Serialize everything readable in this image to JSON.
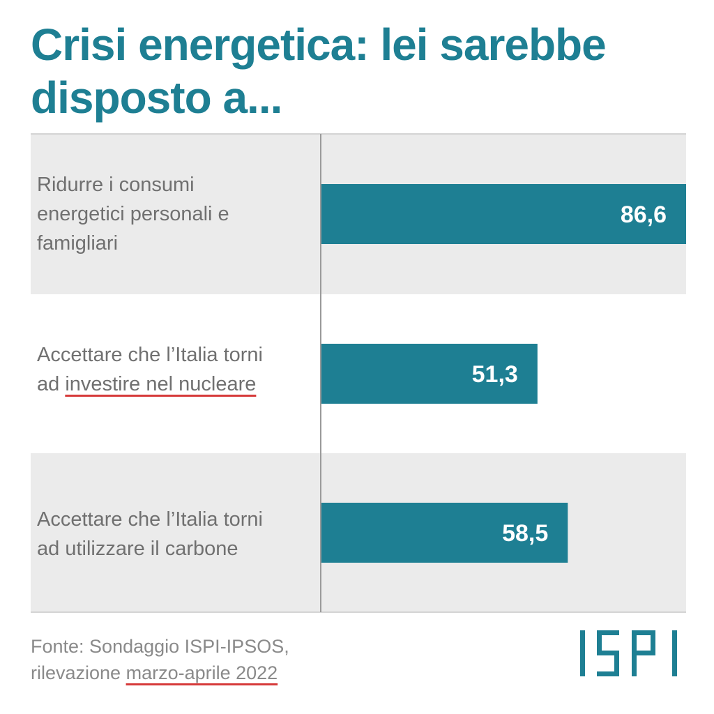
{
  "title": {
    "line1": "Crisi energetica: lei sarebbe",
    "line2": "disposto a..."
  },
  "labels": [
    {
      "lines": [
        "Ridurre i consumi",
        "energetici personali e",
        "famigliari"
      ]
    },
    {
      "line1_a": "Accettare che l’Italia torni",
      "line2_pre": "ad ",
      "line2_underlined": "investire nel nucleare"
    },
    {
      "lines": [
        "Accettare che l’Italia torni",
        "ad utilizzare il carbone"
      ]
    }
  ],
  "chart_data": {
    "type": "bar",
    "orientation": "horizontal",
    "categories": [
      "Ridurre i consumi energetici personali e famigliari",
      "Accettare che l’Italia torni ad investire nel nucleare",
      "Accettare che l’Italia torni ad utilizzare il carbone"
    ],
    "values": [
      86.6,
      51.3,
      58.5
    ],
    "value_labels": [
      "86,6",
      "51,3",
      "58,5"
    ],
    "xlim": [
      0,
      86.6
    ],
    "grid": false,
    "bar_color": "#1e7f93",
    "band_color": "#ebebeb"
  },
  "footer": {
    "source_line1": "Fonte: Sondaggio ISPI-IPSOS,",
    "source_line2_pre": "rilevazione ",
    "source_line2_underlined": "marzo-aprile 2022",
    "logo_text": "ISPI"
  },
  "colors": {
    "accent": "#1e7f93",
    "underline_red": "#d63a3a",
    "label_gray": "#707070"
  }
}
